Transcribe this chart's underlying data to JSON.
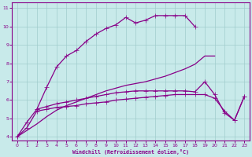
{
  "xlabel": "Windchill (Refroidissement éolien,°C)",
  "x": [
    0,
    1,
    2,
    3,
    4,
    5,
    6,
    7,
    8,
    9,
    10,
    11,
    12,
    13,
    14,
    15,
    16,
    17,
    18,
    19,
    20,
    21,
    22,
    23
  ],
  "curve1": [
    4.0,
    4.8,
    5.5,
    6.7,
    7.8,
    8.4,
    8.7,
    9.2,
    9.6,
    9.9,
    10.1,
    10.5,
    10.2,
    10.35,
    10.6,
    10.6,
    10.6,
    10.6,
    10.0,
    null,
    null,
    null,
    null,
    null
  ],
  "curve2": [
    4.0,
    4.35,
    4.7,
    5.1,
    5.45,
    5.7,
    5.9,
    6.1,
    6.3,
    6.5,
    6.65,
    6.8,
    6.9,
    7.0,
    7.15,
    7.3,
    7.5,
    7.7,
    7.95,
    8.4,
    8.4,
    null,
    null,
    null
  ],
  "curve3": [
    null,
    null,
    5.5,
    5.65,
    5.8,
    5.9,
    6.0,
    6.1,
    6.2,
    6.3,
    6.4,
    6.45,
    6.5,
    6.5,
    6.5,
    6.5,
    6.5,
    6.5,
    6.45,
    7.0,
    6.3,
    5.3,
    4.9,
    6.2
  ],
  "curve4": [
    4.0,
    4.5,
    5.4,
    5.5,
    5.6,
    5.65,
    5.7,
    5.8,
    5.85,
    5.9,
    6.0,
    6.05,
    6.1,
    6.15,
    6.2,
    6.25,
    6.3,
    6.3,
    6.3,
    6.3,
    6.1,
    5.4,
    4.9,
    6.2
  ],
  "ylim": [
    3.8,
    11.3
  ],
  "xlim": [
    -0.5,
    23.5
  ],
  "yticks": [
    4,
    5,
    6,
    7,
    8,
    9,
    10,
    11
  ],
  "xticks": [
    0,
    1,
    2,
    3,
    4,
    5,
    6,
    7,
    8,
    9,
    10,
    11,
    12,
    13,
    14,
    15,
    16,
    17,
    18,
    19,
    20,
    21,
    22,
    23
  ],
  "line_color": "#880088",
  "bg_color": "#c8eaea",
  "grid_color": "#a0cccc"
}
